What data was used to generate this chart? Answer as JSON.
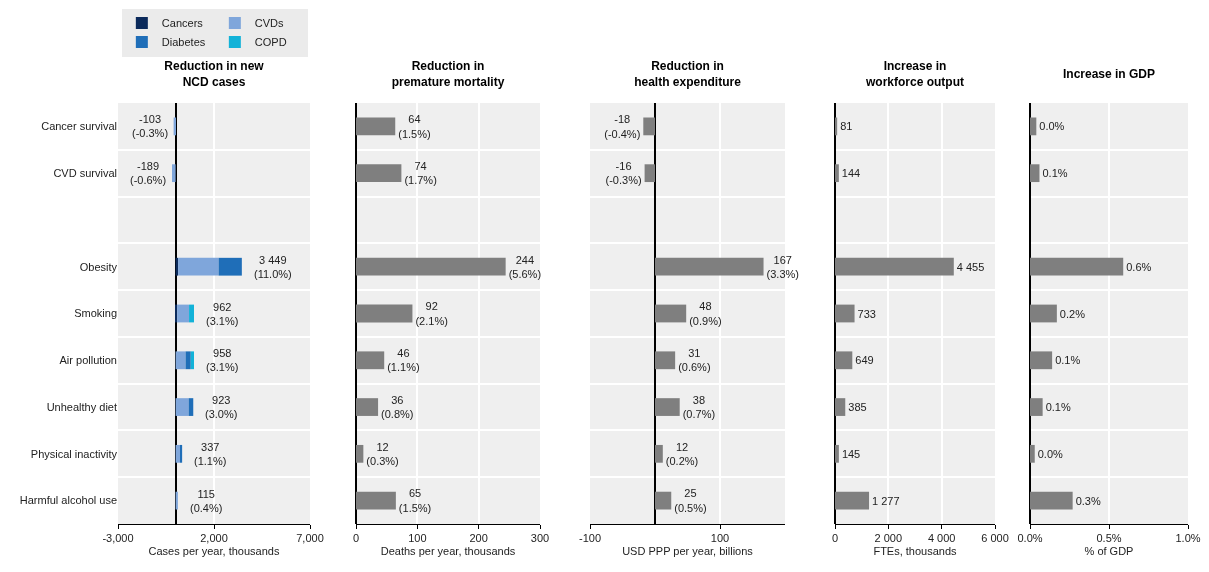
{
  "chart_data": [
    {
      "type": "bar",
      "orientation": "horizontal",
      "stacked": true,
      "title": "Reduction in new\nNCD cases",
      "xlabel": "Cases per year, thousands",
      "categories": [
        "Cancer survival",
        "CVD survival",
        null,
        "Obesity",
        "Smoking",
        "Air pollution",
        "Unhealthy diet",
        "Physical inactivity",
        "Harmful alcohol use"
      ],
      "series": [
        {
          "name": "Cancers",
          "color": "#0b2a5b",
          "values": [
            null,
            null,
            null,
            130,
            80,
            null,
            null,
            null,
            null
          ]
        },
        {
          "name": "CVDs",
          "color": "#7fa6db",
          "values": [
            -103,
            -189,
            null,
            2110,
            620,
            520,
            680,
            240,
            120
          ]
        },
        {
          "name": "Diabetes",
          "color": "#1f6eb8",
          "values": [
            null,
            null,
            null,
            1210,
            null,
            270,
            240,
            100,
            null
          ]
        },
        {
          "name": "COPD",
          "color": "#12b2d8",
          "values": [
            null,
            null,
            null,
            null,
            260,
            170,
            null,
            null,
            null
          ]
        }
      ],
      "totals": [
        "-103\n(-0.3%)",
        "-189\n(-0.6%)",
        null,
        "3 449\n(11.0%)",
        "962\n(3.1%)",
        "958\n(3.1%)",
        "923\n(3.0%)",
        "337\n(1.1%)",
        "115\n(0.4%)"
      ],
      "xlim": [
        -3000,
        7000
      ],
      "xticks": [
        {
          "value": -3000,
          "label": "-3,000"
        },
        {
          "value": 2000,
          "label": "2,000"
        },
        {
          "value": 7000,
          "label": "7,000"
        }
      ],
      "grid": true,
      "legend": "top left"
    },
    {
      "type": "bar",
      "orientation": "horizontal",
      "title": "Reduction in\npremature mortality",
      "xlabel": "Deaths per year, thousands",
      "categories": [
        null,
        null,
        null,
        null,
        null,
        null,
        null,
        null,
        null
      ],
      "series": [
        {
          "color": "#7f7f7f",
          "values": [
            64,
            74,
            null,
            244,
            92,
            46,
            36,
            12,
            65
          ],
          "value_labels": [
            "64\n(1.5%)",
            "74\n(1.7%)",
            null,
            "244\n(5.6%)",
            "92\n(2.1%)",
            "46\n(1.1%)",
            "36\n(0.8%)",
            "12\n(0.3%)",
            "65\n(1.5%)"
          ]
        }
      ],
      "xlim": [
        0,
        300
      ],
      "xticks": [
        0,
        100,
        200,
        300
      ],
      "grid": true,
      "tick_labels": "x"
    },
    {
      "type": "bar",
      "orientation": "horizontal",
      "title": "Reduction in\nhealth expenditure",
      "xlabel": "USD PPP per year, billions",
      "categories": [
        null,
        null,
        null,
        null,
        null,
        null,
        null,
        null,
        null
      ],
      "series": [
        {
          "color": "#7f7f7f",
          "values": [
            -18,
            -16,
            null,
            167,
            48,
            31,
            38,
            12,
            25
          ],
          "value_labels": [
            "-18\n(-0.4%)",
            "-16\n(-0.3%)",
            null,
            "167\n(3.3%)",
            "48\n(0.9%)",
            "31\n(0.6%)",
            "38\n(0.7%)",
            "12\n(0.2%)",
            "25\n(0.5%)"
          ]
        }
      ],
      "xlim": [
        -100,
        200
      ],
      "xticks": [
        -100,
        100
      ],
      "grid": true,
      "tick_labels": "x"
    },
    {
      "type": "bar",
      "orientation": "horizontal",
      "title": "Increase in\nworkforce output",
      "xlabel": "FTEs, thousands",
      "categories": [
        null,
        null,
        null,
        null,
        null,
        null,
        null,
        null,
        null
      ],
      "series": [
        {
          "color": "#7f7f7f",
          "values": [
            81,
            144,
            null,
            4455,
            733,
            649,
            385,
            145,
            1277
          ],
          "value_labels": [
            "81",
            "144",
            null,
            "4 455",
            "733",
            "649",
            "385",
            "145",
            "1 277"
          ]
        }
      ],
      "xlim": [
        0,
        6000
      ],
      "xticks": [
        0,
        {
          "value": 2000,
          "label": "2 000"
        },
        {
          "value": 4000,
          "label": "4 000"
        },
        {
          "value": 6000,
          "label": "6 000"
        }
      ],
      "grid": true,
      "tick_labels": "x"
    },
    {
      "type": "bar",
      "orientation": "horizontal",
      "title": "Increase in GDP",
      "xlabel": "% of GDP",
      "categories": [
        null,
        null,
        null,
        null,
        null,
        null,
        null,
        null,
        null
      ],
      "series": [
        {
          "color": "#7f7f7f",
          "values": [
            0.04,
            0.06,
            null,
            0.59,
            0.17,
            0.14,
            0.08,
            0.03,
            0.27
          ],
          "value_labels": [
            "0.0%",
            "0.1%",
            null,
            "0.6%",
            "0.2%",
            "0.1%",
            "0.1%",
            "0.0%",
            "0.3%"
          ]
        }
      ],
      "xlim": [
        0,
        1
      ],
      "xticks": [
        {
          "value": 0,
          "label": "0.0%"
        },
        {
          "value": 0.5,
          "label": "0.5%"
        },
        {
          "value": 1,
          "label": "1.0%"
        }
      ],
      "grid": true,
      "tick_labels": "x"
    }
  ]
}
